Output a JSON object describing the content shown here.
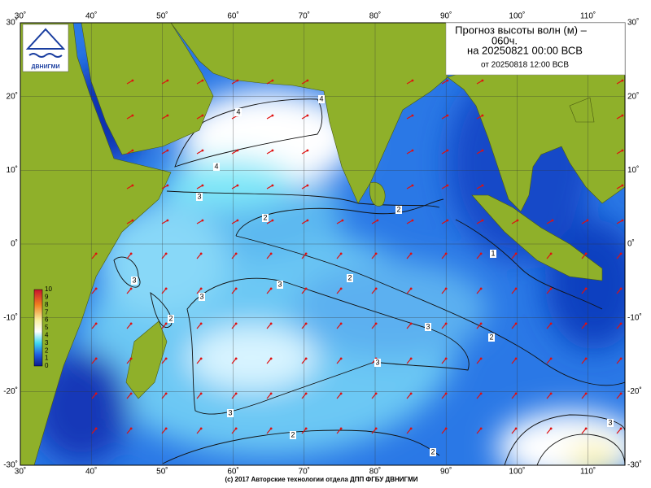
{
  "title_lines": [
    "Прогноз высоты волн (м) –",
    "060ч.",
    "на 20250821 00:00 ВСВ"
  ],
  "issued": "от 20250818 12:00 ВСВ",
  "logo": "ДВНИГМИ",
  "lon_labels": [
    "30˚",
    "40˚",
    "50˚",
    "60˚",
    "70˚",
    "80˚",
    "90˚",
    "100˚",
    "110˚"
  ],
  "lat_labels": [
    "30˚",
    "20˚",
    "10˚",
    "0˚",
    "-10˚",
    "-20˚",
    "-30˚"
  ],
  "colorbar_labels": [
    "10",
    "9",
    "8",
    "7",
    "6",
    "5",
    "4",
    "3",
    "2",
    "1",
    "0"
  ],
  "contour_labels": [
    "4",
    "4",
    "4",
    "3",
    "3",
    "3",
    "3",
    "3",
    "3",
    "3",
    "3",
    "2",
    "2",
    "2",
    "2",
    "2",
    "2",
    "2",
    "1"
  ],
  "footer": "(c) 2017 Авторские технологии отдела ДПП ФГБУ ДВНИГМИ"
}
